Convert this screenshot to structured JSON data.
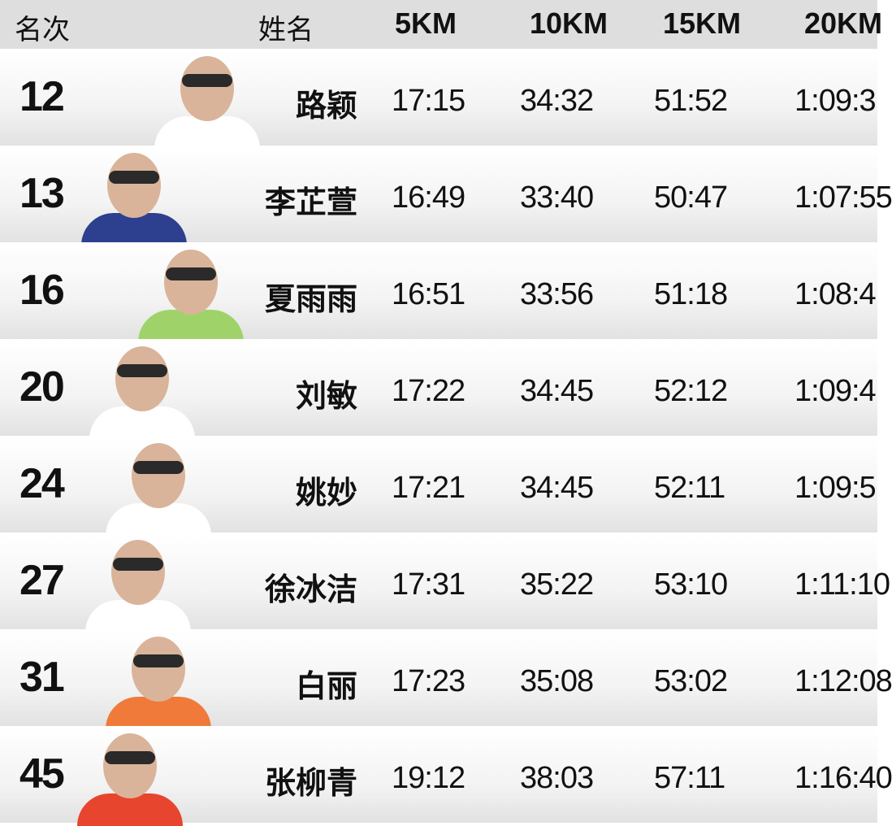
{
  "header": {
    "rank": "名次",
    "name": "姓名",
    "c5": "5KM",
    "c10": "10KM",
    "c15": "15KM",
    "c20": "20KM"
  },
  "rows": [
    {
      "rank": "12",
      "name": "路颖",
      "t5": "17:15",
      "t10": "34:32",
      "t15": "51:52",
      "t20": "1:09:3",
      "shirt": "#ffffff"
    },
    {
      "rank": "13",
      "name": "李芷萱",
      "t5": "16:49",
      "t10": "33:40",
      "t15": "50:47",
      "t20": "1:07:55",
      "shirt": "#2d3f8f"
    },
    {
      "rank": "16",
      "name": "夏雨雨",
      "t5": "16:51",
      "t10": "33:56",
      "t15": "51:18",
      "t20": "1:08:4",
      "shirt": "#9fd36a"
    },
    {
      "rank": "20",
      "name": "刘敏",
      "t5": "17:22",
      "t10": "34:45",
      "t15": "52:12",
      "t20": "1:09:4",
      "shirt": "#ffffff"
    },
    {
      "rank": "24",
      "name": "姚妙",
      "t5": "17:21",
      "t10": "34:45",
      "t15": "52:11",
      "t20": "1:09:5",
      "shirt": "#ffffff"
    },
    {
      "rank": "27",
      "name": "徐冰洁",
      "t5": "17:31",
      "t10": "35:22",
      "t15": "53:10",
      "t20": "1:11:10",
      "shirt": "#ffffff"
    },
    {
      "rank": "31",
      "name": "白丽",
      "t5": "17:23",
      "t10": "35:08",
      "t15": "53:02",
      "t20": "1:12:08",
      "shirt": "#f07a3a"
    },
    {
      "rank": "45",
      "name": "张柳青",
      "t5": "19:12",
      "t10": "38:03",
      "t15": "57:11",
      "t20": "1:16:40",
      "shirt": "#e8452e"
    }
  ]
}
